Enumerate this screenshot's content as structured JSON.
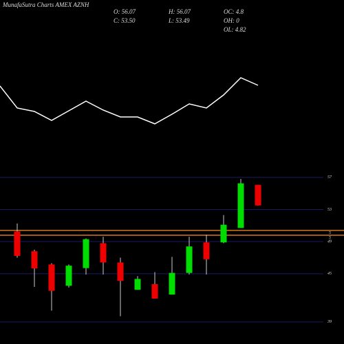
{
  "chart_data": [
    {
      "type": "line",
      "title": "MunafaSutra Charts AMEX AZNH",
      "info": [
        "O: 56.07",
        "H: 56.07",
        "OC: 4.8",
        "C: 53.50",
        "L: 53.49",
        "OH: 0",
        "OL: 4.82"
      ],
      "x": [
        0,
        25,
        50,
        75,
        100,
        125,
        150,
        175,
        200,
        225,
        250,
        275,
        300,
        325,
        350,
        375
      ],
      "values": [
        75,
        43,
        38,
        25,
        39,
        53,
        40,
        30,
        30,
        20,
        34,
        49,
        43,
        62,
        87,
        76
      ],
      "color": "#ffffff",
      "xlim": [
        0,
        500
      ],
      "ylim": [
        0,
        100
      ]
    },
    {
      "type": "candlestick",
      "open": [
        50.26,
        47.8,
        46.15,
        43.5,
        45.7,
        48.8,
        46.4,
        43.0,
        43.7,
        42.4,
        45.1,
        48.9,
        48.9,
        50.7,
        56.07
      ],
      "high": [
        51.25,
        48.0,
        46.3,
        46.15,
        49.4,
        49.6,
        47.0,
        44.7,
        45.2,
        47.1,
        49.6,
        49.85,
        52.3,
        56.8,
        56.07
      ],
      "low": [
        47.0,
        43.36,
        40.4,
        43.28,
        44.9,
        44.9,
        39.7,
        43.0,
        41.9,
        42.4,
        44.9,
        44.9,
        48.8,
        50.7,
        53.49
      ],
      "close": [
        47.22,
        45.66,
        42.87,
        46.0,
        49.3,
        46.4,
        44.1,
        44.35,
        41.9,
        45.1,
        48.4,
        46.8,
        51.1,
        56.26,
        53.5
      ],
      "up_color": "#00dd00",
      "down_color": "#ee0000",
      "ylim": [
        37.7,
        57.5
      ],
      "yticks": [
        57,
        53,
        49,
        45,
        39
      ],
      "grid_color": "#1a1a66",
      "hlines": [
        {
          "value": 50.4,
          "label": "5"
        },
        {
          "value": 49.8,
          "label": "5"
        }
      ],
      "hline_color": "#d2781e"
    }
  ]
}
